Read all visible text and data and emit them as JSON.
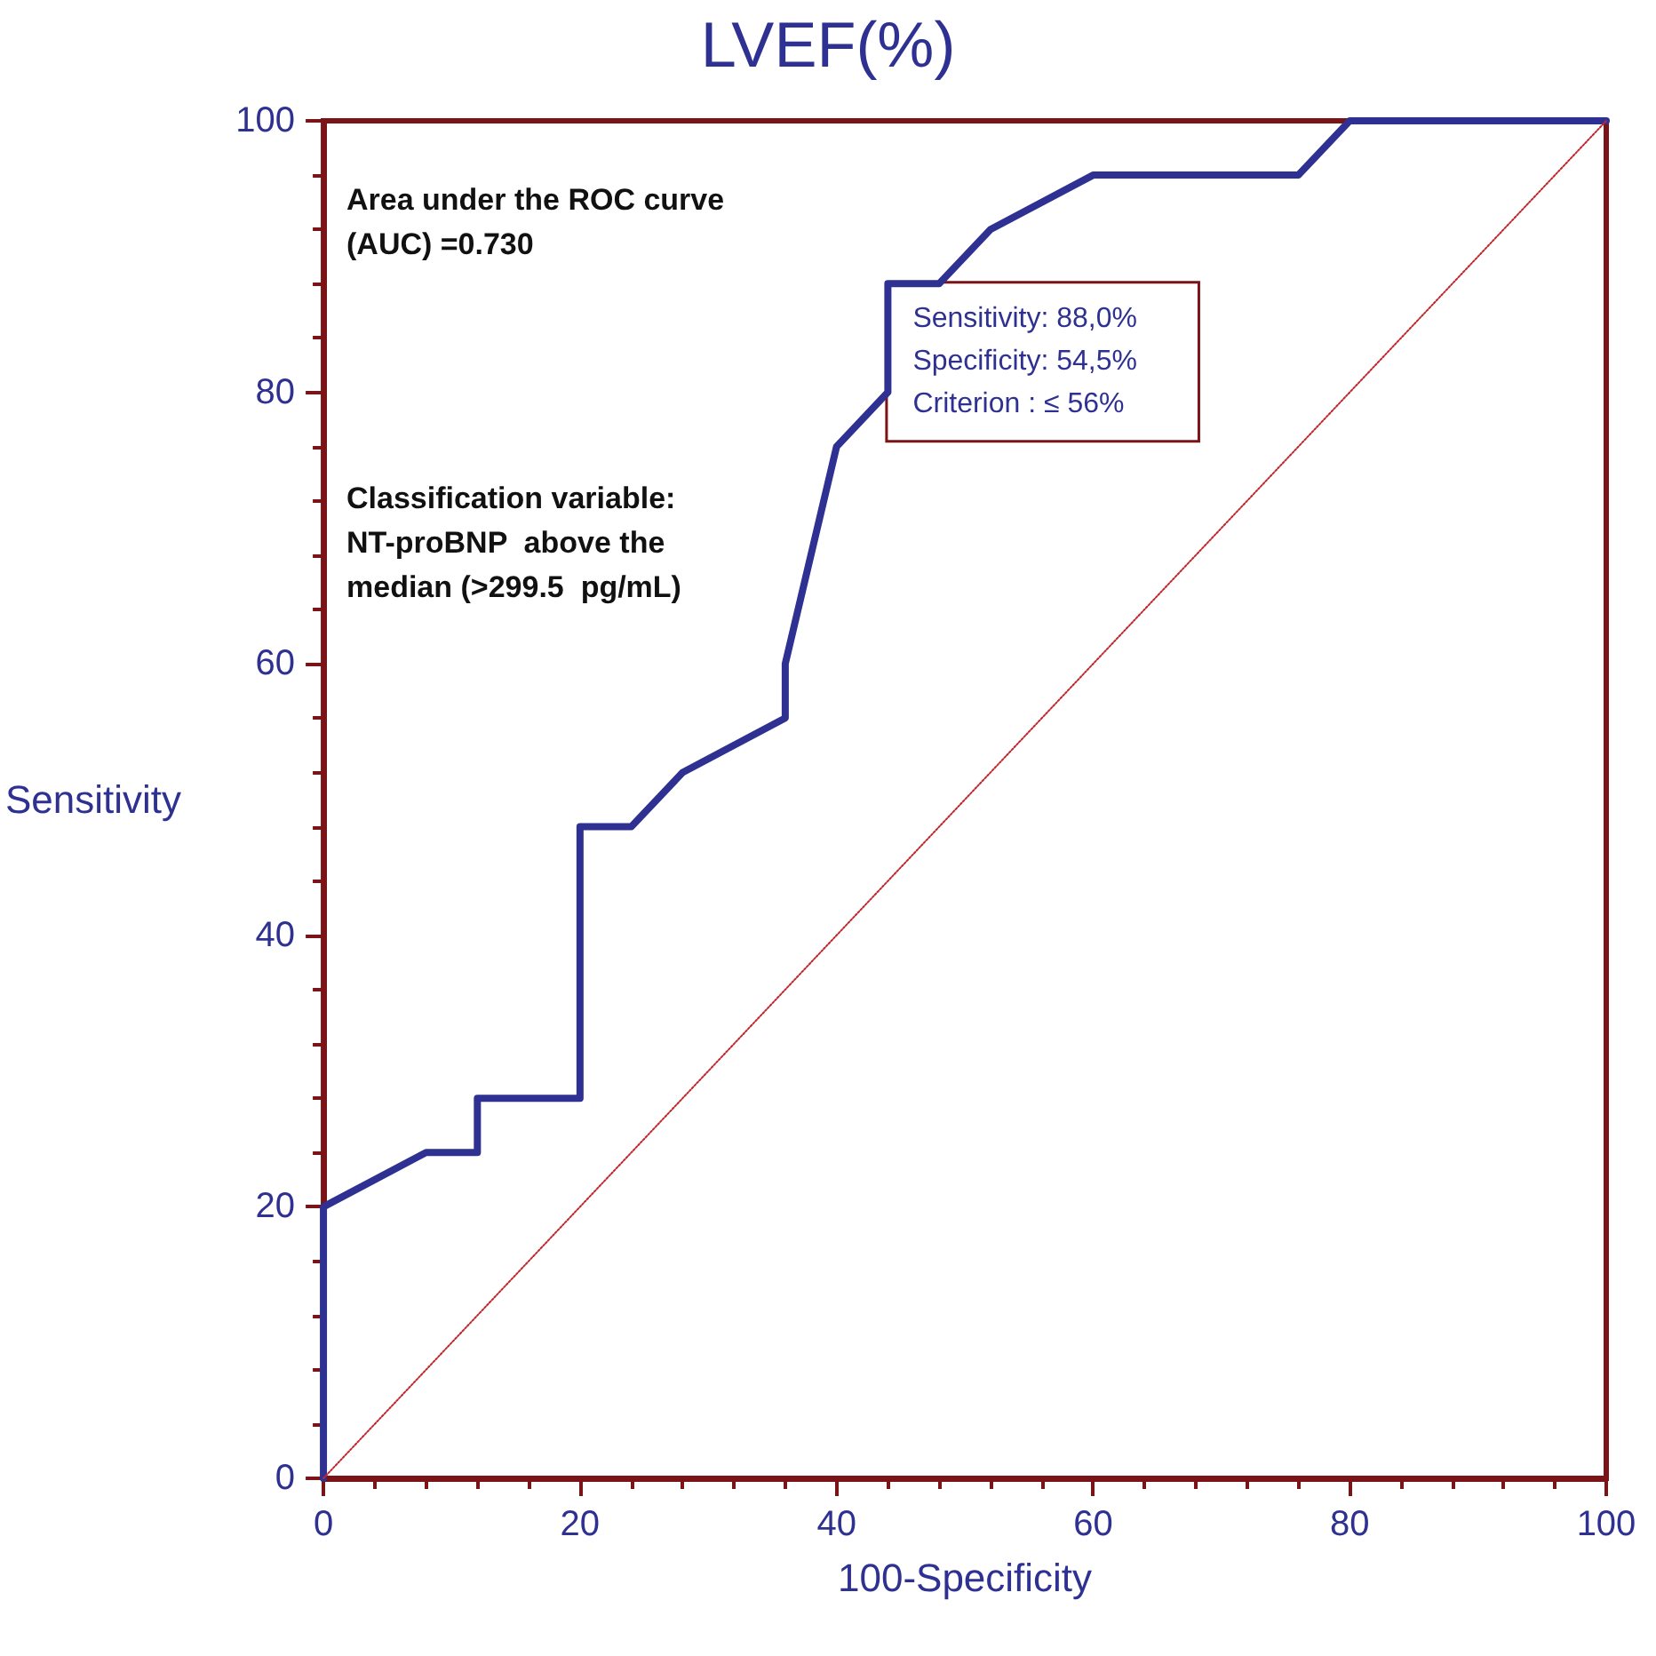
{
  "chart_data": {
    "type": "line",
    "title": "LVEF(%)",
    "xlabel": "100-Specificity",
    "ylabel": "Sensitivity",
    "xlim": [
      0,
      100
    ],
    "xticks": [
      0,
      20,
      40,
      60,
      80,
      100
    ],
    "ylim": [
      0,
      100
    ],
    "yticks": [
      0,
      20,
      40,
      60,
      80,
      100
    ],
    "marker": "none",
    "line_style": "solid",
    "series": [
      {
        "color": "#2e3192",
        "x": [
          0,
          0,
          8,
          12,
          12,
          20,
          20,
          24,
          28,
          36,
          36,
          40,
          44,
          44,
          48,
          52,
          60,
          76,
          80,
          100
        ],
        "values": [
          0,
          20,
          24,
          24,
          28,
          28,
          48,
          48,
          52,
          56,
          60,
          76,
          80,
          88,
          88,
          92,
          96,
          96,
          100,
          100
        ]
      },
      {
        "color": "#c0282d",
        "line_style": "dotted",
        "x": [
          0,
          100
        ],
        "values": [
          0,
          100
        ]
      }
    ],
    "annotations": [
      "Area under the ROC curve\n(AUC) =0.730",
      "Classification variable:\nNT-proBNP  above the\nmedian (>299.5  pg/mL)",
      {
        "text": "Sensitivity: 88,0%\nSpecificity: 54,5%\nCriterion : ≤ 56%",
        "x": 44,
        "y": 88
      }
    ]
  }
}
